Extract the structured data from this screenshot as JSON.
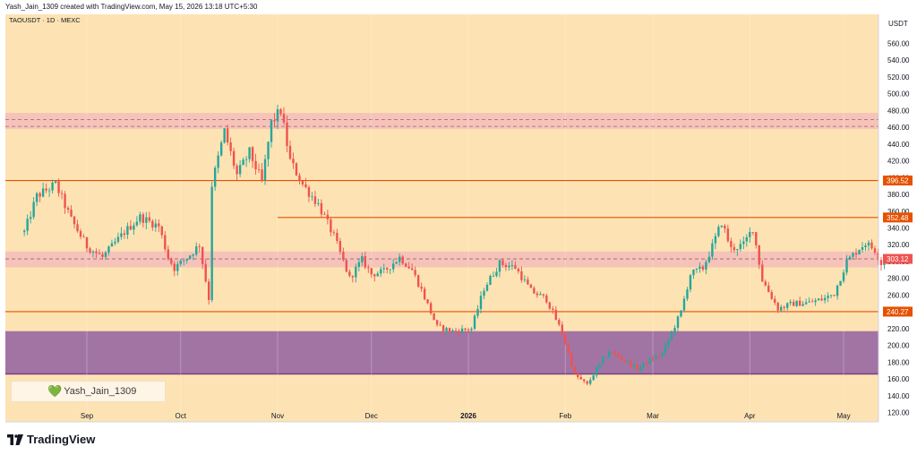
{
  "header": {
    "created_by": "Yash_Jain_1309 created with TradingView.com, May 15, 2026 13:18 UTC+5:30"
  },
  "symbol": "TAOUSDT · 1D · MEXC",
  "currency": "USDT",
  "watermark": "Yash_Jain_1309",
  "brand": "TradingView",
  "colors": {
    "background": "#fde3b3",
    "zone_pink": "#f4c1b9",
    "zone_purple": "#9d6ea3",
    "level_line": "#e65100",
    "up_candle": "#26a69a",
    "down_candle": "#ef5350"
  },
  "chart_data": {
    "type": "candlestick",
    "y_axis": {
      "min": 110,
      "max": 570,
      "ticks": [
        120,
        140,
        160,
        180,
        200,
        220,
        240,
        260,
        280,
        300,
        320,
        340,
        360,
        380,
        400,
        420,
        440,
        460,
        480,
        500,
        520,
        540,
        560
      ]
    },
    "x_axis_labels": [
      {
        "label": "Sep",
        "date": "2025-09-01"
      },
      {
        "label": "Oct",
        "date": "2025-10-01"
      },
      {
        "label": "Nov",
        "date": "2025-11-01"
      },
      {
        "label": "Dec",
        "date": "2025-12-01"
      },
      {
        "label": "2026",
        "date": "2026-01-01",
        "bold": true
      },
      {
        "label": "Feb",
        "date": "2026-02-01"
      },
      {
        "label": "Mar",
        "date": "2026-03-01"
      },
      {
        "label": "Apr",
        "date": "2026-04-01"
      },
      {
        "label": "May",
        "date": "2026-05-01"
      }
    ],
    "zones": [
      {
        "name": "resistance-zone",
        "from": 458,
        "to": 477,
        "color": "#f4c1b9",
        "dashed_lines": [
          461,
          469
        ]
      },
      {
        "name": "pivot-zone",
        "from": 293,
        "to": 312,
        "color": "#f4c1b9",
        "dashed_lines": [
          303.12
        ]
      },
      {
        "name": "demand-zone",
        "from": 166,
        "to": 217,
        "color": "#9d6ea3"
      }
    ],
    "levels": [
      {
        "value": 396.52,
        "label": "396.52"
      },
      {
        "value": 352.48,
        "label": "352.48",
        "start_date": "2025-11-01"
      },
      {
        "value": 240.27,
        "label": "240.27"
      }
    ],
    "last_price": {
      "value": 303.12,
      "label": "303.12"
    },
    "waypoints": [
      [
        "2025-08-12",
        335
      ],
      [
        "2025-08-16",
        378
      ],
      [
        "2025-08-22",
        392
      ],
      [
        "2025-08-27",
        350
      ],
      [
        "2025-09-01",
        318
      ],
      [
        "2025-09-06",
        305
      ],
      [
        "2025-09-13",
        335
      ],
      [
        "2025-09-18",
        353
      ],
      [
        "2025-09-24",
        342
      ],
      [
        "2025-09-27",
        305
      ],
      [
        "2025-09-29",
        292
      ],
      [
        "2025-10-04",
        308
      ],
      [
        "2025-10-07",
        320
      ],
      [
        "2025-10-10",
        256
      ],
      [
        "2025-10-11",
        392
      ],
      [
        "2025-10-15",
        455
      ],
      [
        "2025-10-19",
        403
      ],
      [
        "2025-10-23",
        430
      ],
      [
        "2025-10-27",
        395
      ],
      [
        "2025-10-30",
        465
      ],
      [
        "2025-11-02",
        480
      ],
      [
        "2025-11-05",
        420
      ],
      [
        "2025-11-09",
        392
      ],
      [
        "2025-11-14",
        368
      ],
      [
        "2025-11-19",
        330
      ],
      [
        "2025-11-24",
        280
      ],
      [
        "2025-11-28",
        302
      ],
      [
        "2025-12-01",
        285
      ],
      [
        "2025-12-05",
        288
      ],
      [
        "2025-12-10",
        305
      ],
      [
        "2025-12-14",
        290
      ],
      [
        "2025-12-17",
        266
      ],
      [
        "2025-12-22",
        222
      ],
      [
        "2025-12-27",
        217
      ],
      [
        "2026-01-02",
        220
      ],
      [
        "2026-01-06",
        268
      ],
      [
        "2026-01-11",
        298
      ],
      [
        "2026-01-16",
        293
      ],
      [
        "2026-01-21",
        265
      ],
      [
        "2026-01-26",
        255
      ],
      [
        "2026-01-31",
        215
      ],
      [
        "2026-02-04",
        165
      ],
      [
        "2026-02-08",
        153
      ],
      [
        "2026-02-11",
        172
      ],
      [
        "2026-02-15",
        193
      ],
      [
        "2026-02-20",
        182
      ],
      [
        "2026-02-24",
        172
      ],
      [
        "2026-03-01",
        185
      ],
      [
        "2026-03-04",
        190
      ],
      [
        "2026-03-10",
        240
      ],
      [
        "2026-03-13",
        285
      ],
      [
        "2026-03-17",
        292
      ],
      [
        "2026-03-20",
        318
      ],
      [
        "2026-03-23",
        347
      ],
      [
        "2026-03-26",
        315
      ],
      [
        "2026-03-30",
        320
      ],
      [
        "2026-04-02",
        340
      ],
      [
        "2026-04-05",
        278
      ],
      [
        "2026-04-10",
        244
      ],
      [
        "2026-04-15",
        250
      ],
      [
        "2026-04-20",
        251
      ],
      [
        "2026-04-25",
        256
      ],
      [
        "2026-04-28",
        262
      ],
      [
        "2026-05-02",
        300
      ],
      [
        "2026-05-06",
        316
      ],
      [
        "2026-05-08",
        322
      ],
      [
        "2026-05-11",
        314
      ],
      [
        "2026-05-13",
        298
      ],
      [
        "2026-05-15",
        303
      ]
    ]
  }
}
